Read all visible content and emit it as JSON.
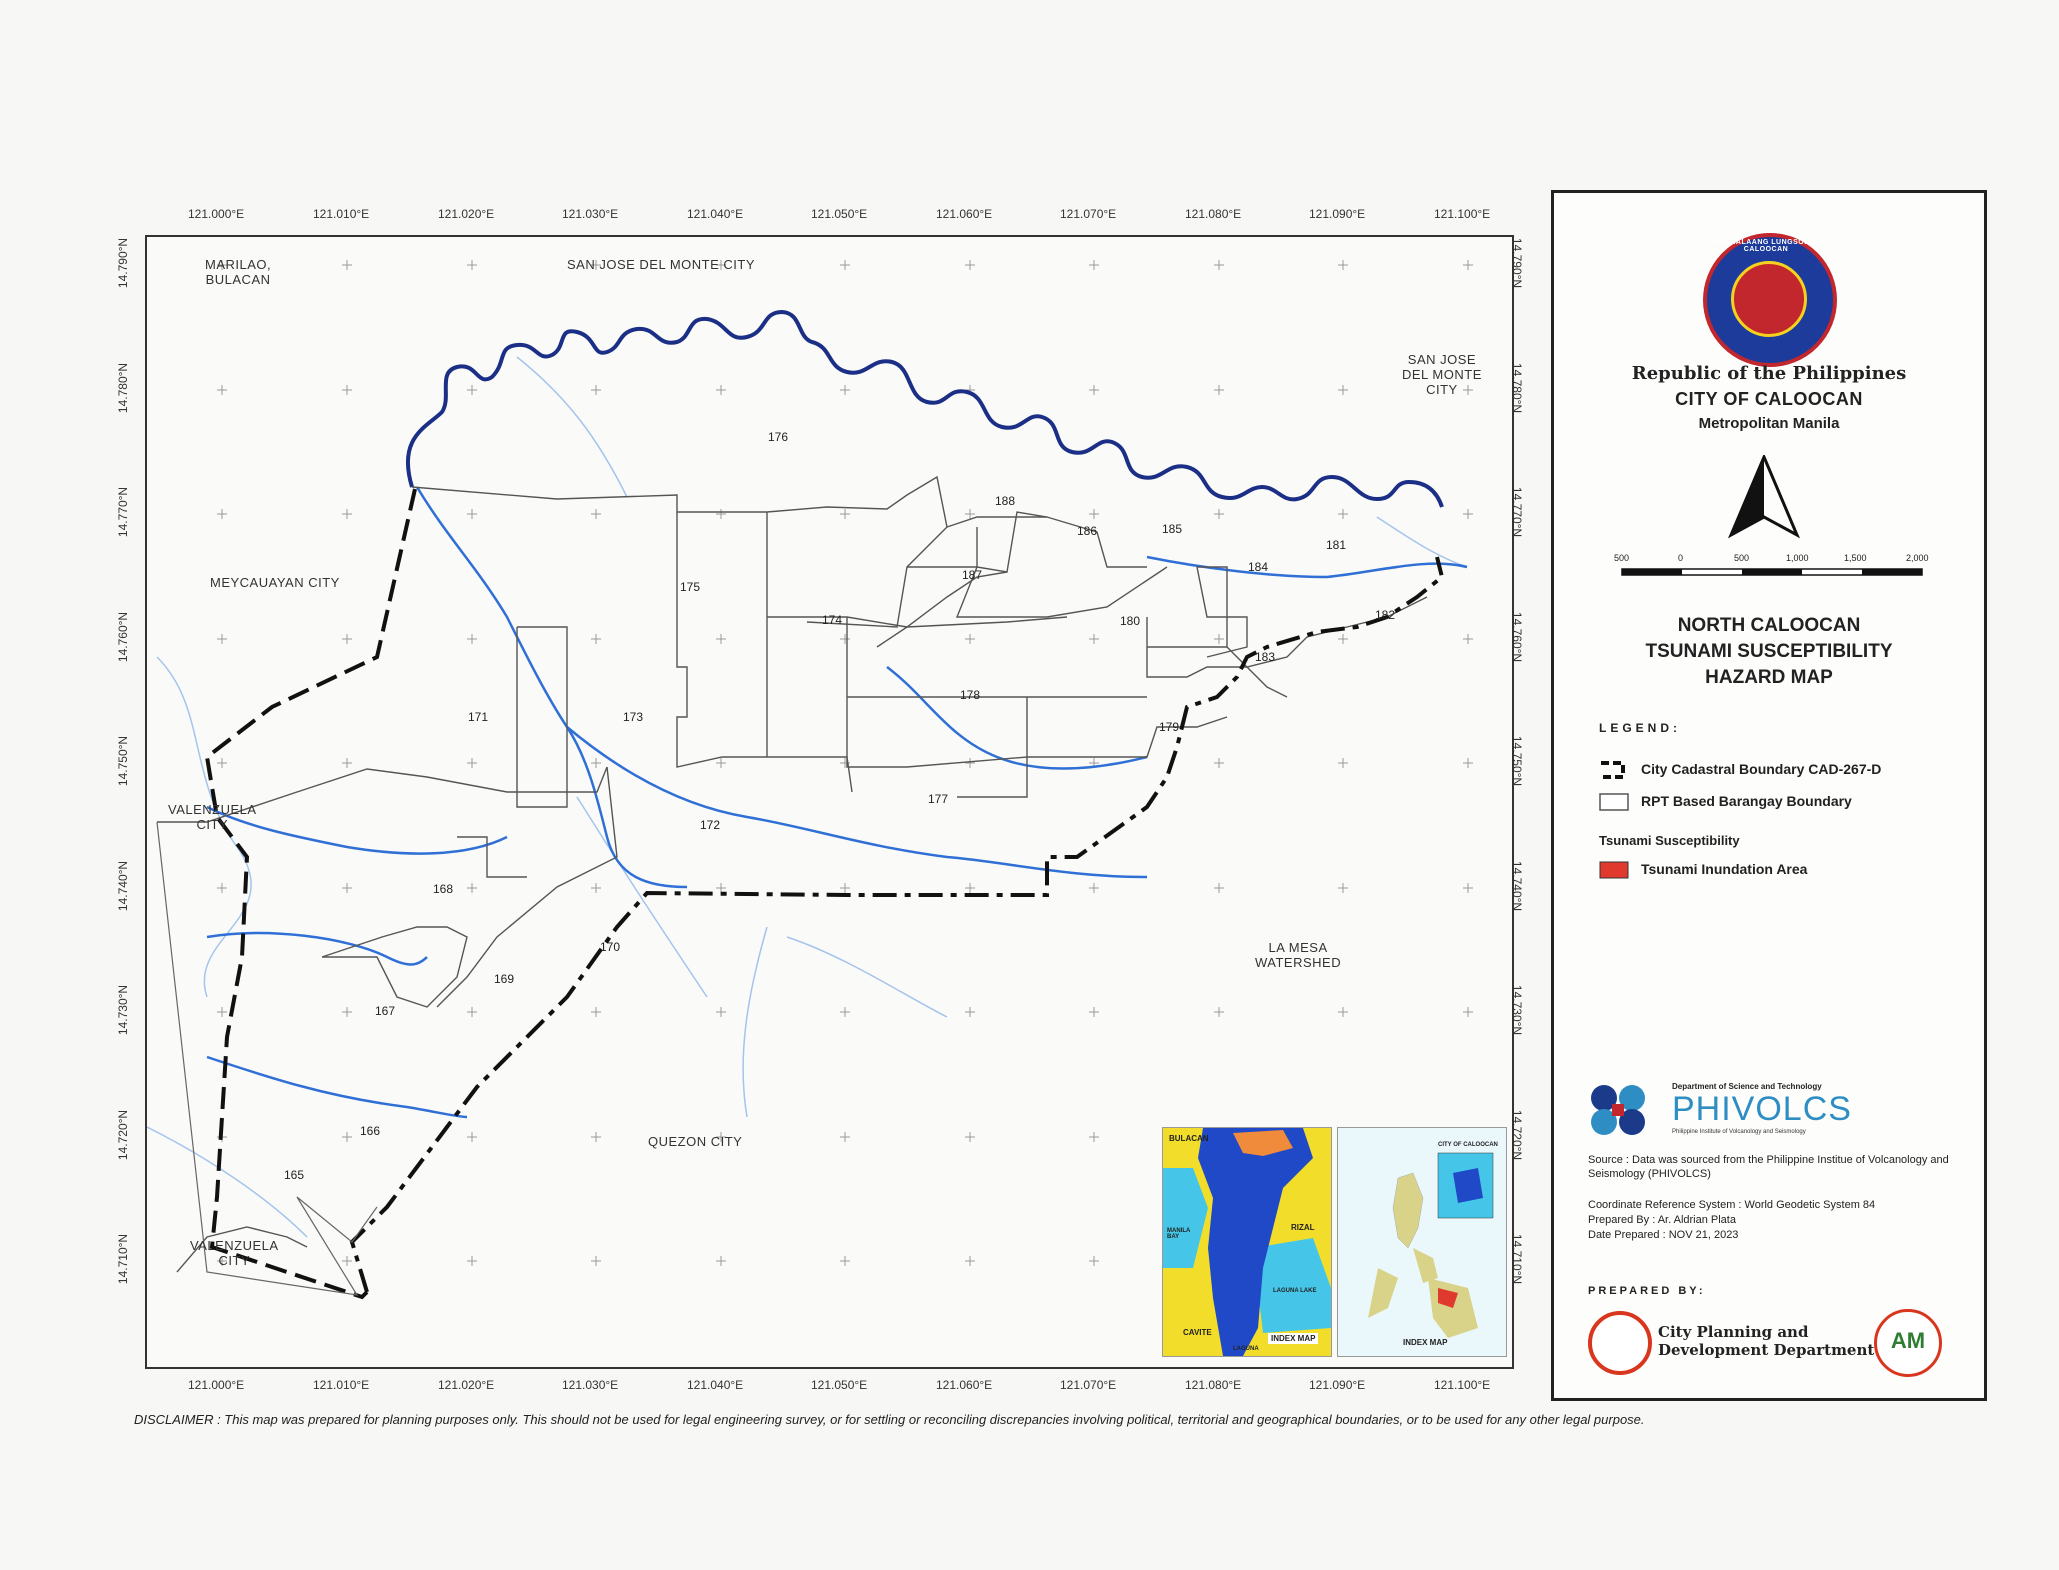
{
  "axes": {
    "lon_ticks": [
      "121.000°E",
      "121.010°E",
      "121.020°E",
      "121.030°E",
      "121.040°E",
      "121.050°E",
      "121.060°E",
      "121.070°E",
      "121.080°E",
      "121.090°E",
      "121.100°E"
    ],
    "lat_ticks": [
      "14.790°N",
      "14.780°N",
      "14.770°N",
      "14.760°N",
      "14.750°N",
      "14.740°N",
      "14.730°N",
      "14.720°N",
      "14.710°N"
    ]
  },
  "places": {
    "marilao": "MARILAO,\nBULACAN",
    "sjdm_top": "SAN JOSE DEL MONTE CITY",
    "sjdm_right": "SAN JOSE\nDEL MONTE\nCITY",
    "meycauayan": "MEYCAUAYAN CITY",
    "valenzuela_1": "VALENZUELA\nCITY",
    "valenzuela_2": "VALENZUELA\nCITY",
    "la_mesa": "LA MESA\nWATERSHED",
    "quezon": "QUEZON CITY"
  },
  "barangays": [
    "176",
    "175",
    "174",
    "173",
    "171",
    "172",
    "168",
    "170",
    "169",
    "167",
    "166",
    "165",
    "188",
    "186",
    "185",
    "187",
    "184",
    "181",
    "182",
    "180",
    "183",
    "178",
    "179",
    "177"
  ],
  "title_panel": {
    "seal_text": "PAMAHALAANG LUNGSOD NG CALOOCAN",
    "republic": "Republic of the Philippines",
    "city": "CITY OF CALOOCAN",
    "metro": "Metropolitan Manila",
    "scale_labels": [
      "500",
      "0",
      "500",
      "1,000",
      "1,500",
      "2,000"
    ],
    "map_title": "NORTH CALOOCAN\nTSUNAMI SUSCEPTIBILITY\nHAZARD MAP",
    "legend_heading": "LEGEND:",
    "legend_items": [
      "City Cadastral Boundary CAD-267-D",
      "RPT Based Barangay Boundary"
    ],
    "tsunami_heading": "Tsunami Susceptibility",
    "tsunami_item": "Tsunami Inundation Area",
    "phivolcs_dept": "Department of Science and Technology",
    "phivolcs_name": "PHIVOLCS",
    "phivolcs_sub": "Philippine Institute of Volcanology and Seismology",
    "source": "Source :  Data was sourced from the Philippine Institue of Volcanology and Seismology (PHIVOLCS)",
    "crs": "Coordinate Reference System : World Geodetic System 84",
    "prepared_by": "Prepared By : Ar. Aldrian Plata",
    "date_prepared": "Date Prepared : NOV 21, 2023",
    "prepared_heading": "PREPARED BY:",
    "cpdd": "City Planning and\nDevelopment Department",
    "am_logo": "AM"
  },
  "index_maps": {
    "label_1": "INDEX MAP",
    "label_2": "INDEX MAP",
    "bulacan": "BULACAN",
    "rizal": "RIZAL",
    "manila_bay": "MANILA BAY",
    "laguna_lake": "LAGUNA LAKE",
    "cavite": "CAVITE",
    "laguna": "LAGUNA",
    "city_caloocan": "CITY OF CALOOCAN"
  },
  "disclaimer": "DISCLAIMER : This map was prepared for planning purposes only. This should not be used for legal engineering survey, or for settling or reconciling discrepancies involving political, territorial and geographical boundaries, or to be used for any other legal purpose.",
  "colors": {
    "river": "#2f6fd6",
    "boundary": "#111111",
    "inundation": "#e03a2f",
    "index_land": "#1f49c7",
    "index_bg": "#f3dd2b",
    "index_sea": "#45c6e8",
    "caloocan_highlight": "#f08b3b"
  }
}
